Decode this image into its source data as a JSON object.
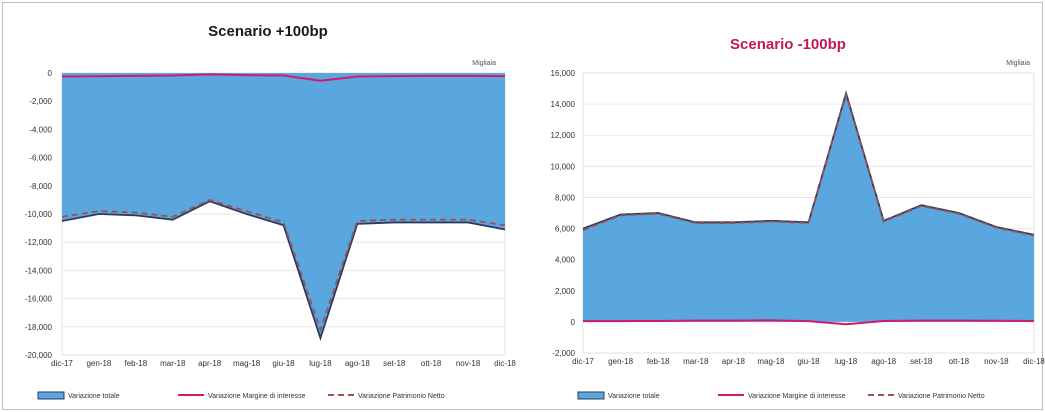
{
  "chart_data": [
    {
      "type": "area",
      "title": "Scenario +100bp",
      "unit_label": "Migliaia",
      "categories": [
        "dic-17",
        "gen-18",
        "feb-18",
        "mar-18",
        "apr-18",
        "mag-18",
        "giu-18",
        "lug-18",
        "ago-18",
        "set-18",
        "ott-18",
        "nov-18",
        "dic-18"
      ],
      "ylim": [
        -20000,
        0
      ],
      "yticks": [
        0,
        -2000,
        -4000,
        -6000,
        -8000,
        -10000,
        -12000,
        -14000,
        -16000,
        -18000,
        -20000
      ],
      "ytick_labels": [
        "0",
        "-2,000",
        "-4,000",
        "-6,000",
        "-8,000",
        "-10,000",
        "-12,000",
        "-14,000",
        "-16,000",
        "-18,000",
        "-20,000"
      ],
      "series": [
        {
          "name": "Variazione totale",
          "style": "area",
          "values": [
            -10500,
            -10000,
            -10100,
            -10400,
            -9100,
            -10000,
            -10800,
            -18800,
            -10700,
            -10600,
            -10600,
            -10600,
            -11100
          ]
        },
        {
          "name": "Variazione Margine di interesse",
          "style": "line",
          "values": [
            -250,
            -230,
            -200,
            -180,
            -100,
            -150,
            -180,
            -550,
            -250,
            -220,
            -200,
            -200,
            -220
          ]
        },
        {
          "name": "Variazione Patrimonio Netto",
          "style": "dashed",
          "values": [
            -10200,
            -9800,
            -9900,
            -10200,
            -9000,
            -9800,
            -10600,
            -18200,
            -10500,
            -10400,
            -10400,
            -10400,
            -10800
          ]
        }
      ],
      "colors": {
        "title": "#1a1a1a",
        "area": "#5aa6de",
        "area_edge": "#2f3a60",
        "margin_line": "#d2196e",
        "dashed": "#a0524a"
      }
    },
    {
      "type": "area",
      "title": "Scenario -100bp",
      "unit_label": "Migliaia",
      "categories": [
        "dic-17",
        "gen-18",
        "feb-18",
        "mar-18",
        "apr-18",
        "mag-18",
        "giu-18",
        "lug-18",
        "ago-18",
        "set-18",
        "ott-18",
        "nov-18",
        "dic-18"
      ],
      "ylim": [
        -2000,
        16000
      ],
      "yticks": [
        16000,
        14000,
        12000,
        10000,
        8000,
        6000,
        4000,
        2000,
        0,
        -2000
      ],
      "ytick_labels": [
        "16,000",
        "14,000",
        "12,000",
        "10,000",
        "8,000",
        "6,000",
        "4,000",
        "2,000",
        "0",
        "-2,000"
      ],
      "series": [
        {
          "name": "Variazione totale",
          "style": "area",
          "values": [
            6000,
            6900,
            7000,
            6400,
            6400,
            6500,
            6400,
            14700,
            6500,
            7500,
            7000,
            6100,
            5600
          ]
        },
        {
          "name": "Variazione Margine di interesse",
          "style": "line",
          "values": [
            50,
            50,
            60,
            80,
            80,
            100,
            50,
            -150,
            60,
            80,
            80,
            70,
            60
          ]
        },
        {
          "name": "Variazione Patrimonio Netto",
          "style": "dashed",
          "values": [
            5900,
            6850,
            6950,
            6350,
            6350,
            6450,
            6350,
            14600,
            6450,
            7450,
            6950,
            6050,
            5550
          ]
        }
      ],
      "colors": {
        "title": "#c2185b",
        "area": "#5aa6de",
        "area_edge": "#2f3a60",
        "margin_line": "#d2196e",
        "dashed": "#a0524a"
      }
    }
  ]
}
